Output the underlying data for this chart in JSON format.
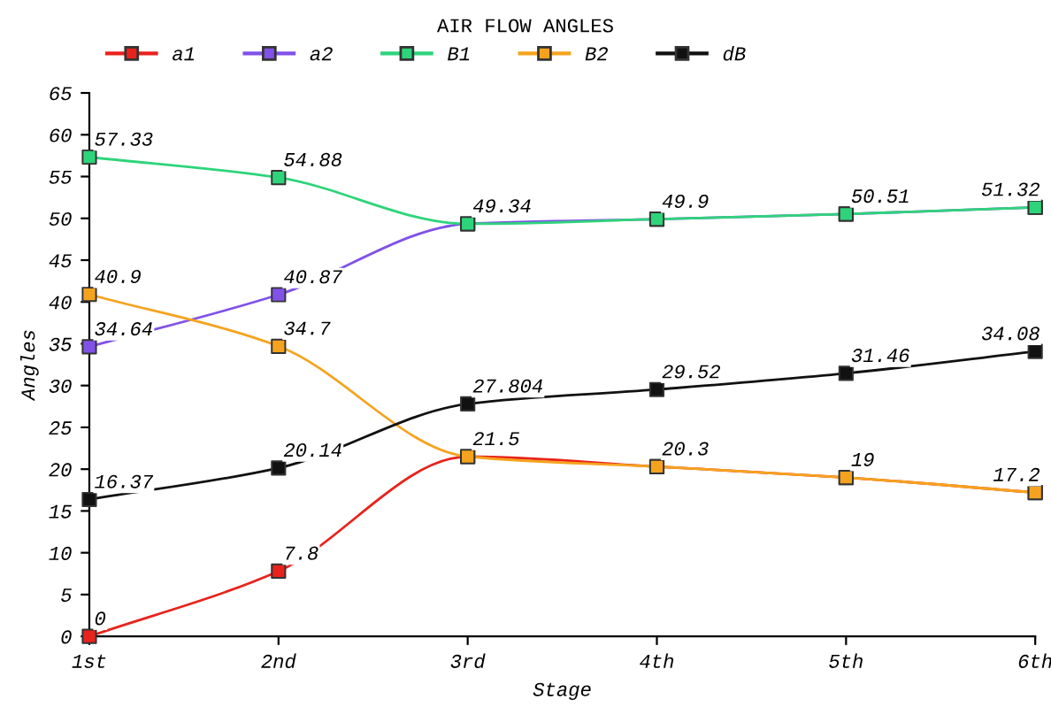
{
  "chart_data": {
    "type": "line",
    "title": "AIR FLOW ANGLES",
    "xlabel": "Stage",
    "ylabel": "Angles",
    "categories": [
      "1st",
      "2nd",
      "3rd",
      "4th",
      "5th",
      "6th"
    ],
    "series": [
      {
        "name": "a1",
        "color": "#e8231c",
        "values": [
          0,
          7.8,
          21.5,
          20.3,
          19,
          17.2
        ],
        "value_labels": [
          "0",
          "7.8",
          "21.5",
          "20.3",
          "19",
          "17.2"
        ]
      },
      {
        "name": "a2",
        "color": "#8052e8",
        "values": [
          34.64,
          40.87,
          49.34,
          49.9,
          50.51,
          51.32
        ],
        "value_labels": [
          "34.64",
          "40.87",
          "49.34",
          "49.9",
          "50.51",
          "51.32"
        ]
      },
      {
        "name": "B1",
        "color": "#2ed47a",
        "values": [
          57.33,
          54.88,
          49.34,
          49.9,
          50.51,
          51.32
        ],
        "value_labels": [
          "57.33",
          "54.88",
          null,
          null,
          null,
          null
        ]
      },
      {
        "name": "B2",
        "color": "#f5a31e",
        "values": [
          40.9,
          34.7,
          21.5,
          20.3,
          19,
          17.2
        ],
        "value_labels": [
          "40.9",
          "34.7",
          null,
          null,
          null,
          null
        ]
      },
      {
        "name": "dB",
        "color": "#111111",
        "values": [
          16.37,
          20.14,
          27.804,
          29.52,
          31.46,
          34.08
        ],
        "value_labels": [
          "16.37",
          "20.14",
          "27.804",
          "29.52",
          "31.46",
          "34.08"
        ]
      }
    ],
    "ylim": [
      0,
      65
    ],
    "yticks": [
      0,
      5,
      10,
      15,
      20,
      25,
      30,
      35,
      40,
      45,
      50,
      55,
      60,
      65
    ],
    "grid": false,
    "legend": "top",
    "marker": "square",
    "line_style": "solid"
  }
}
